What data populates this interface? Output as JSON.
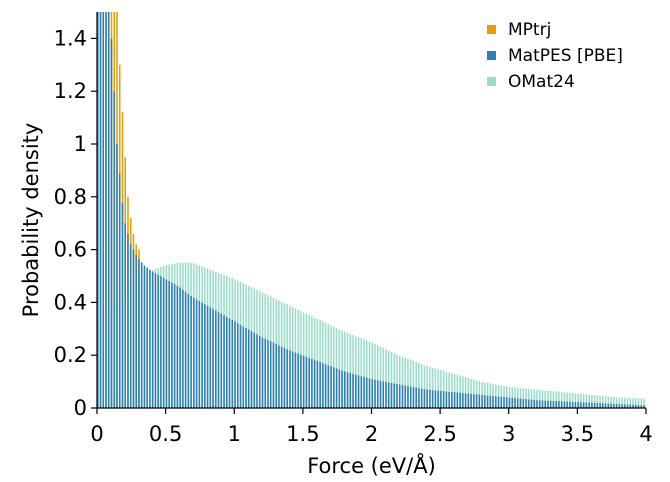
{
  "chart_data": {
    "type": "bar",
    "title": "",
    "xlabel": "Force (eV/Å)",
    "ylabel": "Probability density",
    "xlim": [
      0,
      4
    ],
    "ylim": [
      0,
      1.5
    ],
    "xticks": [
      "0",
      "0.5",
      "1",
      "1.5",
      "2",
      "2.5",
      "3",
      "3.5",
      "4"
    ],
    "xtick_values": [
      0,
      0.5,
      1,
      1.5,
      2,
      2.5,
      3,
      3.5,
      4
    ],
    "yticks": [
      "0",
      "0.2",
      "0.4",
      "0.6",
      "0.8",
      "1",
      "1.2",
      "1.4"
    ],
    "ytick_values": [
      0,
      0.2,
      0.4,
      0.6,
      0.8,
      1,
      1.2,
      1.4
    ],
    "legend_position": "top-right",
    "grid": false,
    "series": [
      {
        "name": "MPtrj",
        "color": "#e69f00",
        "x": [
          0.01,
          0.03,
          0.05,
          0.07,
          0.09,
          0.11,
          0.13,
          0.15,
          0.17,
          0.19,
          0.21,
          0.23,
          0.25,
          0.27,
          0.29,
          0.31
        ],
        "values": [
          1.5,
          1.5,
          1.5,
          1.5,
          1.5,
          1.5,
          1.5,
          1.5,
          1.3,
          1.12,
          0.95,
          0.8,
          0.72,
          0.66,
          0.62,
          0.6
        ]
      },
      {
        "name": "MatPES [PBE]",
        "color": "#2a7fb8",
        "x": [
          0.01,
          0.05,
          0.1,
          0.15,
          0.2,
          0.25,
          0.3,
          0.35,
          0.4,
          0.5,
          0.6,
          0.7,
          0.8,
          0.9,
          1.0,
          1.2,
          1.4,
          1.6,
          1.8,
          2.0,
          2.2,
          2.4,
          2.6,
          2.8,
          3.0,
          3.2,
          3.4,
          3.6,
          3.8,
          4.0
        ],
        "values": [
          1.5,
          1.5,
          1.5,
          1.0,
          0.72,
          0.62,
          0.57,
          0.54,
          0.52,
          0.49,
          0.46,
          0.42,
          0.39,
          0.36,
          0.33,
          0.27,
          0.22,
          0.18,
          0.14,
          0.11,
          0.09,
          0.07,
          0.06,
          0.05,
          0.04,
          0.03,
          0.025,
          0.02,
          0.015,
          0.01
        ]
      },
      {
        "name": "OMat24",
        "color": "#99ddc8",
        "x": [
          0.0,
          0.05,
          0.1,
          0.2,
          0.3,
          0.4,
          0.5,
          0.6,
          0.7,
          0.8,
          0.9,
          1.0,
          1.2,
          1.4,
          1.6,
          1.8,
          2.0,
          2.2,
          2.4,
          2.6,
          2.8,
          3.0,
          3.2,
          3.4,
          3.6,
          3.8,
          4.0
        ],
        "values": [
          0.3,
          0.35,
          0.4,
          0.45,
          0.49,
          0.52,
          0.54,
          0.55,
          0.55,
          0.53,
          0.51,
          0.49,
          0.44,
          0.39,
          0.34,
          0.29,
          0.25,
          0.2,
          0.16,
          0.13,
          0.1,
          0.08,
          0.07,
          0.06,
          0.05,
          0.04,
          0.035
        ]
      }
    ]
  }
}
